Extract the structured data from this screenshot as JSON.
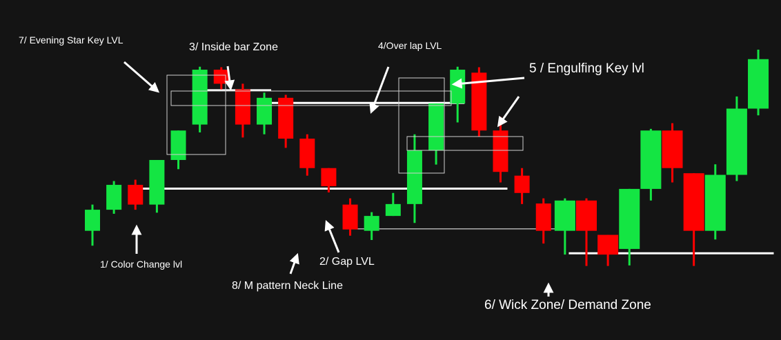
{
  "colors": {
    "background": "#141414",
    "bullish": "#14e543",
    "bearish": "#ff0000",
    "annotation": "#ffffff",
    "box": "#cfcfcf"
  },
  "chart_data": {
    "type": "candlestick",
    "title": "",
    "xlabel": "",
    "ylabel": "",
    "ylim": [
      0,
      100
    ],
    "candles": [
      {
        "i": 0,
        "open": 28.4,
        "high": 38.1,
        "low": 22.9,
        "close": 36.2
      },
      {
        "i": 1,
        "open": 36.2,
        "high": 46.8,
        "low": 34.7,
        "close": 45.4
      },
      {
        "i": 2,
        "open": 45.4,
        "high": 47.3,
        "low": 36.2,
        "close": 38.1
      },
      {
        "i": 3,
        "open": 38.1,
        "high": 54.6,
        "low": 35.1,
        "close": 54.6
      },
      {
        "i": 4,
        "open": 54.6,
        "high": 65.5,
        "low": 51.2,
        "close": 65.5
      },
      {
        "i": 5,
        "open": 67.7,
        "high": 89.1,
        "low": 64.8,
        "close": 88.0
      },
      {
        "i": 6,
        "open": 88.0,
        "high": 88.9,
        "low": 80.7,
        "close": 82.8
      },
      {
        "i": 7,
        "open": 80.7,
        "high": 82.8,
        "low": 62.9,
        "close": 67.7
      },
      {
        "i": 8,
        "open": 67.7,
        "high": 79.5,
        "low": 64.1,
        "close": 77.6
      },
      {
        "i": 9,
        "open": 77.6,
        "high": 78.7,
        "low": 59.1,
        "close": 62.5
      },
      {
        "i": 10,
        "open": 62.5,
        "high": 64.1,
        "low": 48.8,
        "close": 51.6
      },
      {
        "i": 11,
        "open": 51.6,
        "high": 51.6,
        "low": 42.6,
        "close": 44.9
      },
      {
        "i": 12,
        "open": 38.1,
        "high": 40.4,
        "low": 26.6,
        "close": 28.9
      },
      {
        "i": 13,
        "open": 28.4,
        "high": 35.3,
        "low": 25.0,
        "close": 33.9
      },
      {
        "i": 14,
        "open": 33.9,
        "high": 42.4,
        "low": 33.9,
        "close": 38.3
      },
      {
        "i": 15,
        "open": 38.3,
        "high": 64.1,
        "low": 31.3,
        "close": 58.2
      },
      {
        "i": 16,
        "open": 58.2,
        "high": 75.5,
        "low": 52.9,
        "close": 75.5
      },
      {
        "i": 17,
        "open": 75.5,
        "high": 89.1,
        "low": 68.5,
        "close": 88.0
      },
      {
        "i": 18,
        "open": 86.9,
        "high": 88.9,
        "low": 63.4,
        "close": 65.5
      },
      {
        "i": 19,
        "open": 65.5,
        "high": 70.5,
        "low": 46.3,
        "close": 50.2
      },
      {
        "i": 20,
        "open": 48.8,
        "high": 51.6,
        "low": 38.3,
        "close": 42.4
      },
      {
        "i": 21,
        "open": 38.5,
        "high": 40.4,
        "low": 23.7,
        "close": 28.4
      },
      {
        "i": 22,
        "open": 28.4,
        "high": 40.4,
        "low": 19.6,
        "close": 39.6
      },
      {
        "i": 23,
        "open": 39.6,
        "high": 40.4,
        "low": 15.4,
        "close": 28.4
      },
      {
        "i": 24,
        "open": 26.9,
        "high": 26.9,
        "low": 15.4,
        "close": 19.6
      },
      {
        "i": 25,
        "open": 21.7,
        "high": 43.9,
        "low": 15.6,
        "close": 43.9
      },
      {
        "i": 26,
        "open": 43.9,
        "high": 66.1,
        "low": 39.6,
        "close": 65.5
      },
      {
        "i": 27,
        "open": 65.5,
        "high": 68.2,
        "low": 46.3,
        "close": 51.6
      },
      {
        "i": 28,
        "open": 49.7,
        "high": 49.7,
        "low": 15.4,
        "close": 28.4
      },
      {
        "i": 29,
        "open": 28.4,
        "high": 53.0,
        "low": 25.2,
        "close": 49.1
      },
      {
        "i": 30,
        "open": 49.1,
        "high": 78.1,
        "low": 46.8,
        "close": 73.6
      },
      {
        "i": 31,
        "open": 73.6,
        "high": 95.4,
        "low": 71.1,
        "close": 91.9
      }
    ],
    "levels": [
      {
        "name": "color-change-level",
        "y": 44.0,
        "from": 2,
        "to": 19,
        "thickness": "thick"
      },
      {
        "name": "neck-line",
        "y": 29.1,
        "from": 12,
        "to": 22,
        "thickness": "thin"
      },
      {
        "name": "overlap-level",
        "y": 75.7,
        "from": 8,
        "to": 17,
        "thickness": "thick"
      },
      {
        "name": "inside-bar-line",
        "y": 80.4,
        "from": 5.5,
        "to": 8,
        "thickness": "thick"
      },
      {
        "name": "demand-zone-line",
        "y": 20.1,
        "from": 22.5,
        "to": 31.4,
        "thickness": "thick"
      }
    ]
  },
  "annotations": {
    "evening_star": "7/ Evening Star Key LVL",
    "inside_bar": "3/ Inside bar Zone",
    "overlap": "4/Over lap LVL",
    "engulfing": "5 / Engulfing Key lvl",
    "color_change": "1/ Color Change lvl",
    "gap": "2/ Gap LVL",
    "neck_line": "8/ M pattern Neck Line",
    "wick_zone": "6/ Wick Zone/ Demand Zone"
  }
}
